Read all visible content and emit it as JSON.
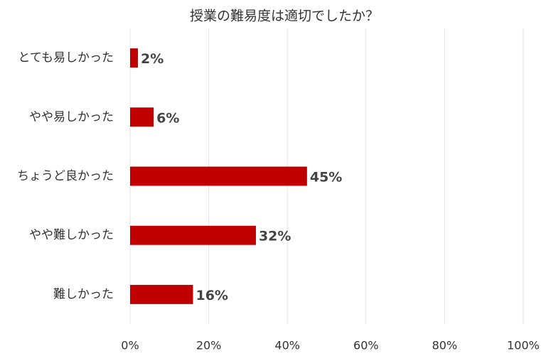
{
  "chart_data": {
    "type": "bar",
    "orientation": "horizontal",
    "title": "授業の難易度は適切でしたか？",
    "categories": [
      "とても易しかった",
      "やや易しかった",
      "ちょうど良かった",
      "やや難しかった",
      "難しかった"
    ],
    "values": [
      2,
      6,
      45,
      32,
      16
    ],
    "value_labels": [
      "2%",
      "6%",
      "45%",
      "32%",
      "16%"
    ],
    "color": "#c00000",
    "xlim": [
      0,
      100
    ],
    "xticks": [
      {
        "value": 0,
        "label": "0%"
      },
      {
        "value": 20,
        "label": "20%"
      },
      {
        "value": 40,
        "label": "40%"
      },
      {
        "value": 60,
        "label": "60%"
      },
      {
        "value": 80,
        "label": "80%"
      },
      {
        "value": 100,
        "label": "100%"
      }
    ],
    "grid": true
  }
}
